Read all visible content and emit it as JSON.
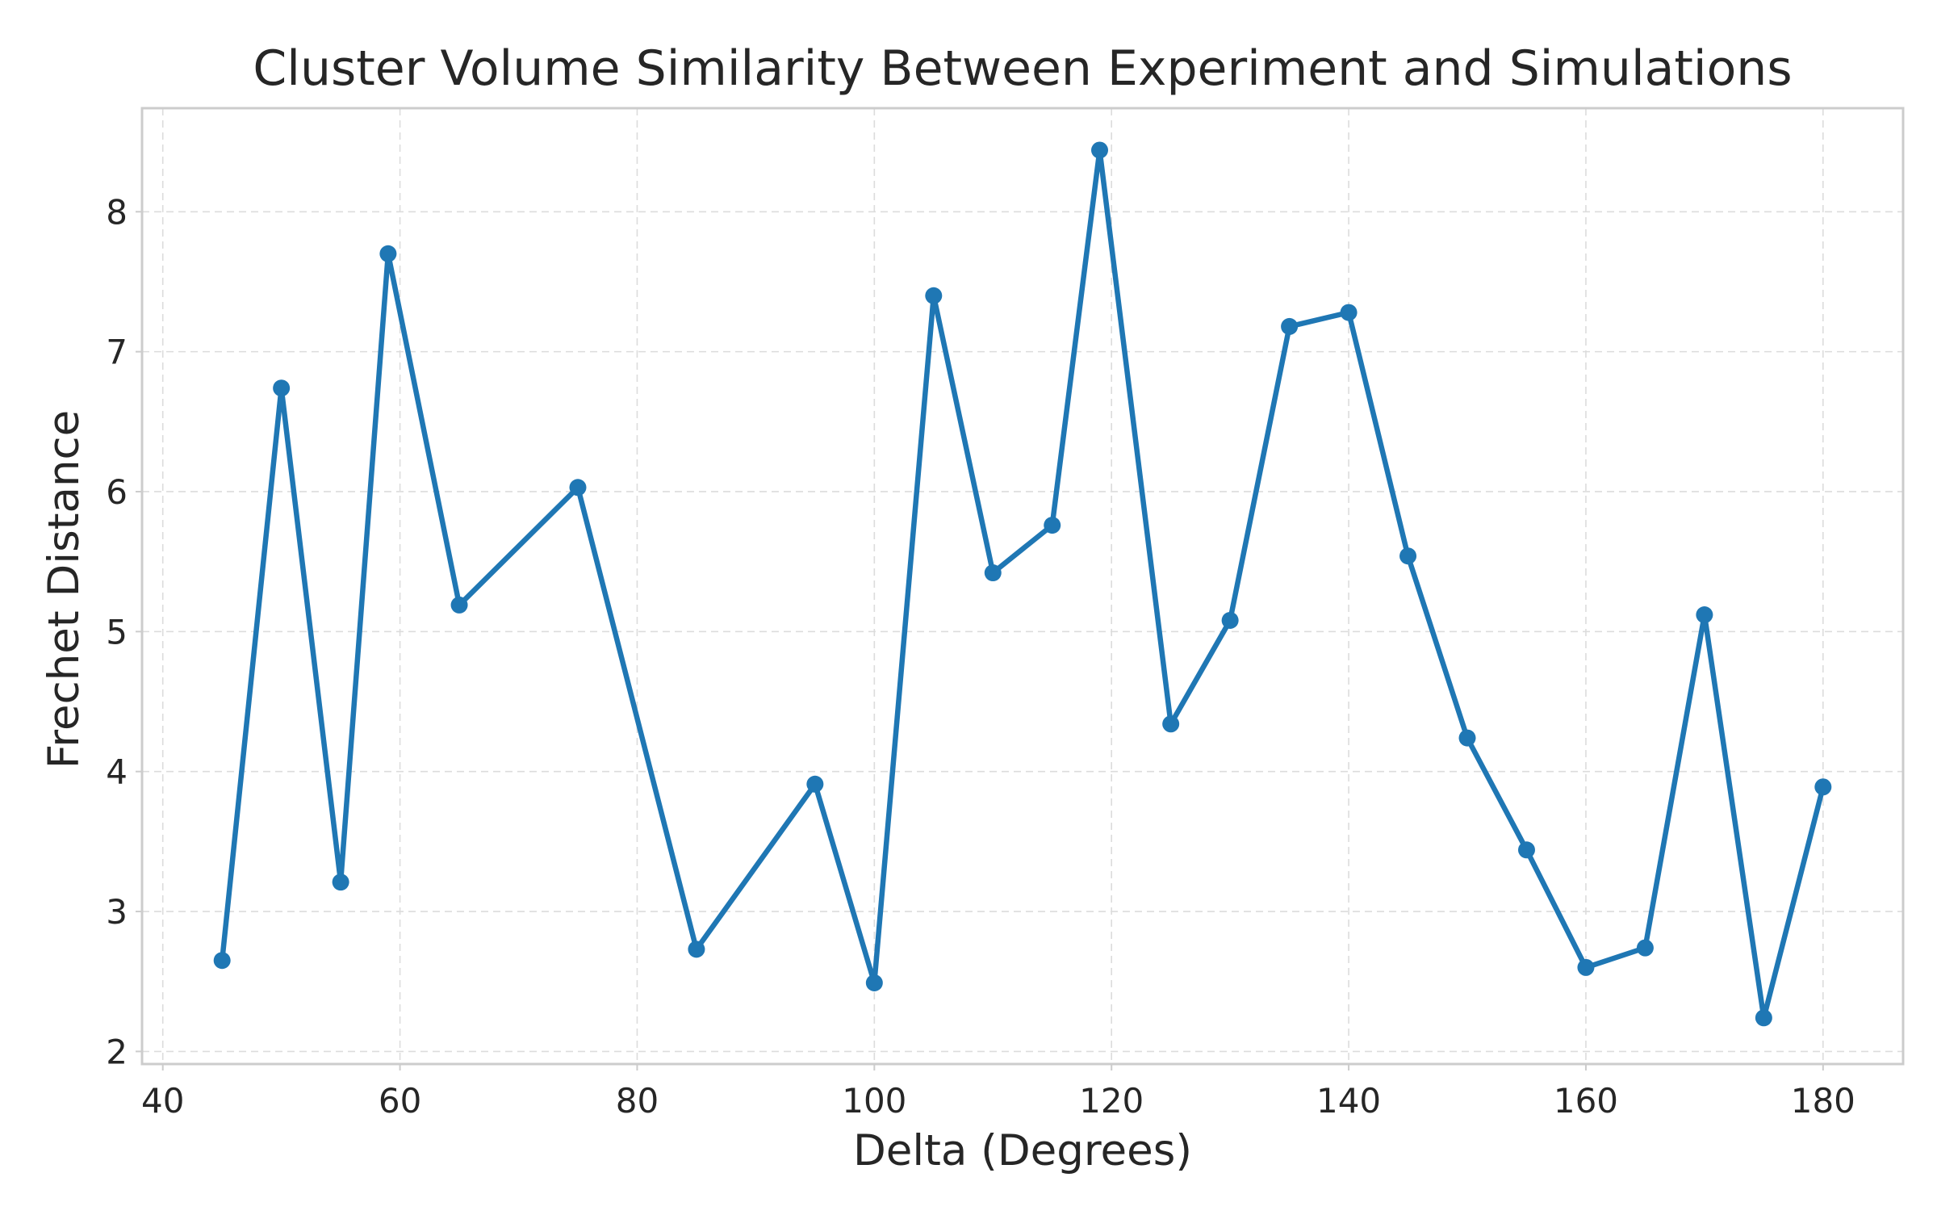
{
  "chart_data": {
    "type": "line",
    "title": "Cluster Volume Similarity Between Experiment and Simulations",
    "xlabel": "Delta (Degrees)",
    "ylabel": "Frechet Distance",
    "xlim": [
      38.25,
      186.75
    ],
    "ylim": [
      1.91,
      8.74
    ],
    "xticks": [
      40,
      60,
      80,
      100,
      120,
      140,
      160,
      180
    ],
    "yticks": [
      2,
      3,
      4,
      5,
      6,
      7,
      8
    ],
    "grid": true,
    "legend": false,
    "color": "#1f77b4",
    "series": [
      {
        "x": [
          45,
          50,
          55,
          59,
          65,
          75,
          85,
          95,
          100,
          105,
          110,
          115,
          119,
          125,
          130,
          135,
          140,
          145,
          150,
          155,
          160,
          165,
          170,
          175,
          180
        ],
        "values": [
          2.65,
          6.74,
          3.21,
          7.7,
          5.19,
          6.03,
          2.73,
          3.91,
          2.49,
          7.4,
          5.42,
          5.76,
          8.44,
          4.34,
          5.08,
          7.18,
          7.28,
          5.54,
          4.24,
          3.44,
          2.6,
          2.74,
          5.12,
          2.24,
          3.89
        ]
      }
    ]
  }
}
